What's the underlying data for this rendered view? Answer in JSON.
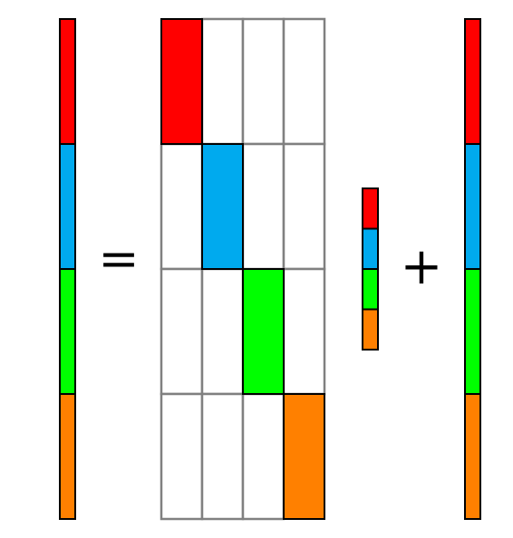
{
  "colors": {
    "block1": "#ff0000",
    "block2": "#00aaee",
    "block3": "#00ff00",
    "block4": "#ff8000",
    "cell_border": "#808080",
    "block_border": "#000000",
    "background": "#ffffff"
  },
  "symbols": {
    "equals": "=",
    "plus": "+"
  },
  "matrix": {
    "rows": 4,
    "cols": 4,
    "diagonal_color_keys": [
      "block1",
      "block2",
      "block3",
      "block4"
    ]
  },
  "left_vector": {
    "segment_color_keys": [
      "block1",
      "block2",
      "block3",
      "block4"
    ]
  },
  "small_vector": {
    "segment_color_keys": [
      "block1",
      "block2",
      "block3",
      "block4"
    ]
  },
  "right_vector": {
    "segment_color_keys": [
      "block1",
      "block2",
      "block3",
      "block4"
    ]
  }
}
